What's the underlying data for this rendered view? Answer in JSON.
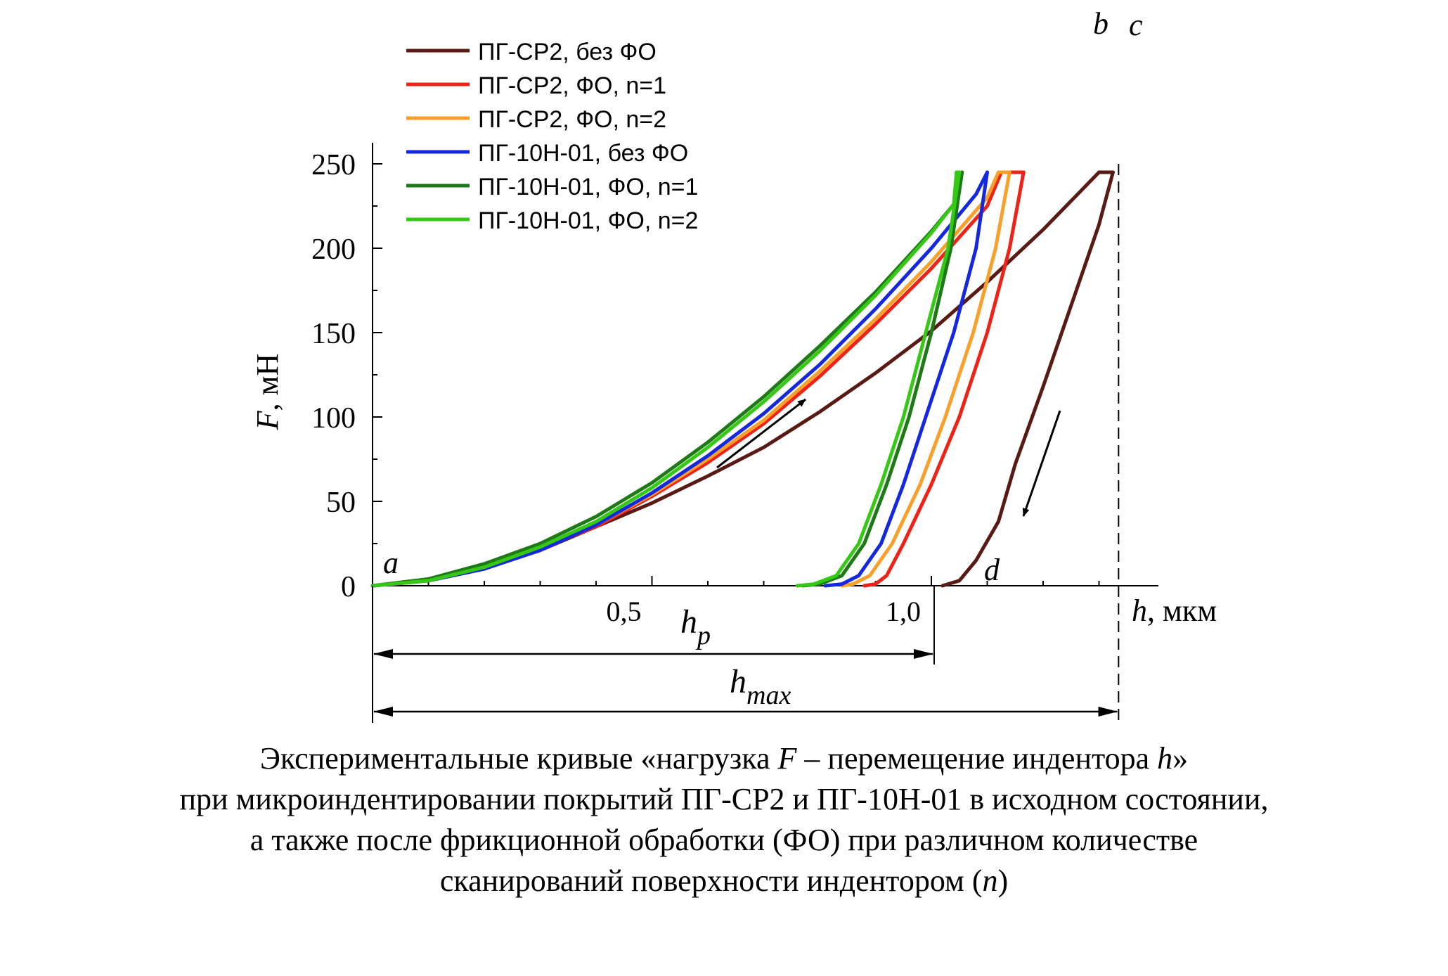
{
  "chart_data": {
    "type": "line",
    "ylabel_var": "F",
    "ylabel_unit": ", мН",
    "xlabel_var": "h",
    "xlabel_unit": ", мкм",
    "ylim": [
      0,
      250
    ],
    "xlim": [
      0,
      1.4
    ],
    "yticks": [
      0,
      50,
      100,
      150,
      200,
      250
    ],
    "ytick_labels": [
      "0",
      "50",
      "100",
      "150",
      "200",
      "250"
    ],
    "xticks": [
      0.5,
      1.0
    ],
    "xtick_labels": [
      "0,5",
      "1,0"
    ],
    "grid": false,
    "legend_position": "top-left",
    "point_labels": [
      "a",
      "b",
      "c",
      "d"
    ],
    "hp_label": "h",
    "hp_sub": "p",
    "hmax_label": "h",
    "hmax_sub": "max",
    "hp_value": 1.005,
    "hmax_value": 1.335,
    "series": [
      {
        "name": "ПГ-СР2, без ФО",
        "color": "#5a1a14",
        "loading": [
          [
            0,
            0
          ],
          [
            0.1,
            3
          ],
          [
            0.2,
            10
          ],
          [
            0.3,
            21
          ],
          [
            0.4,
            35
          ],
          [
            0.5,
            49
          ],
          [
            0.6,
            65
          ],
          [
            0.7,
            82
          ],
          [
            0.8,
            103
          ],
          [
            0.9,
            126
          ],
          [
            1.0,
            151
          ],
          [
            1.1,
            180
          ],
          [
            1.2,
            211
          ],
          [
            1.3,
            245
          ]
        ],
        "plateau": [
          [
            1.3,
            245
          ],
          [
            1.325,
            245
          ]
        ],
        "unloading": [
          [
            1.325,
            245
          ],
          [
            1.3,
            214
          ],
          [
            1.25,
            166
          ],
          [
            1.2,
            118
          ],
          [
            1.15,
            72
          ],
          [
            1.12,
            38
          ],
          [
            1.08,
            15
          ],
          [
            1.05,
            3
          ],
          [
            1.02,
            0
          ]
        ]
      },
      {
        "name": "ПГ-СР2, ФО, n=1",
        "color": "#ee2216",
        "loading": [
          [
            0,
            0
          ],
          [
            0.1,
            3
          ],
          [
            0.2,
            11
          ],
          [
            0.3,
            22
          ],
          [
            0.4,
            35
          ],
          [
            0.5,
            53
          ],
          [
            0.6,
            73
          ],
          [
            0.7,
            96
          ],
          [
            0.8,
            124
          ],
          [
            0.9,
            155
          ],
          [
            1.0,
            188
          ],
          [
            1.1,
            225
          ],
          [
            1.125,
            245
          ]
        ],
        "plateau": [
          [
            1.125,
            245
          ],
          [
            1.165,
            245
          ]
        ],
        "unloading": [
          [
            1.165,
            245
          ],
          [
            1.14,
            200
          ],
          [
            1.1,
            150
          ],
          [
            1.05,
            100
          ],
          [
            1.0,
            60
          ],
          [
            0.95,
            25
          ],
          [
            0.92,
            6
          ],
          [
            0.9,
            1
          ],
          [
            0.88,
            0
          ]
        ]
      },
      {
        "name": "ПГ-СР2, ФО, n=2",
        "color": "#f9a02a",
        "loading": [
          [
            0,
            0
          ],
          [
            0.1,
            3
          ],
          [
            0.2,
            11
          ],
          [
            0.3,
            22
          ],
          [
            0.4,
            36
          ],
          [
            0.5,
            54
          ],
          [
            0.6,
            75
          ],
          [
            0.7,
            98
          ],
          [
            0.8,
            127
          ],
          [
            0.9,
            158
          ],
          [
            1.0,
            192
          ],
          [
            1.1,
            230
          ],
          [
            1.12,
            245
          ]
        ],
        "plateau": [
          [
            1.12,
            245
          ],
          [
            1.14,
            245
          ]
        ],
        "unloading": [
          [
            1.14,
            245
          ],
          [
            1.115,
            200
          ],
          [
            1.075,
            150
          ],
          [
            1.025,
            100
          ],
          [
            0.98,
            60
          ],
          [
            0.93,
            25
          ],
          [
            0.89,
            6
          ],
          [
            0.86,
            1
          ],
          [
            0.84,
            0
          ]
        ]
      },
      {
        "name": "ПГ-10Н-01, без ФО",
        "color": "#1428e0",
        "loading": [
          [
            0,
            0
          ],
          [
            0.1,
            3
          ],
          [
            0.2,
            10
          ],
          [
            0.3,
            21
          ],
          [
            0.4,
            36
          ],
          [
            0.5,
            55
          ],
          [
            0.6,
            77
          ],
          [
            0.7,
            102
          ],
          [
            0.8,
            131
          ],
          [
            0.9,
            164
          ],
          [
            1.0,
            200
          ],
          [
            1.08,
            232
          ],
          [
            1.1,
            245
          ]
        ],
        "plateau": [
          [
            1.1,
            245
          ],
          [
            1.1,
            245
          ]
        ],
        "unloading": [
          [
            1.1,
            245
          ],
          [
            1.08,
            200
          ],
          [
            1.04,
            150
          ],
          [
            0.99,
            100
          ],
          [
            0.95,
            60
          ],
          [
            0.91,
            25
          ],
          [
            0.87,
            6
          ],
          [
            0.84,
            1
          ],
          [
            0.81,
            0
          ]
        ]
      },
      {
        "name": "ПГ-10Н-01, ФО, n=1",
        "color": "#1e7a16",
        "loading": [
          [
            0,
            0
          ],
          [
            0.1,
            4
          ],
          [
            0.2,
            13
          ],
          [
            0.3,
            25
          ],
          [
            0.4,
            41
          ],
          [
            0.5,
            61
          ],
          [
            0.6,
            85
          ],
          [
            0.7,
            112
          ],
          [
            0.8,
            142
          ],
          [
            0.9,
            174
          ],
          [
            1.0,
            210
          ],
          [
            1.04,
            226
          ],
          [
            1.055,
            245
          ]
        ],
        "plateau": [
          [
            1.055,
            245
          ],
          [
            1.055,
            245
          ]
        ],
        "unloading": [
          [
            1.055,
            245
          ],
          [
            1.035,
            200
          ],
          [
            1.0,
            150
          ],
          [
            0.96,
            100
          ],
          [
            0.92,
            60
          ],
          [
            0.88,
            25
          ],
          [
            0.84,
            6
          ],
          [
            0.8,
            1
          ],
          [
            0.77,
            0
          ]
        ]
      },
      {
        "name": "ПГ-10Н-01, ФО, n=2",
        "color": "#35c814",
        "loading": [
          [
            0,
            0
          ],
          [
            0.1,
            3
          ],
          [
            0.2,
            11
          ],
          [
            0.3,
            23
          ],
          [
            0.4,
            38
          ],
          [
            0.5,
            58
          ],
          [
            0.6,
            82
          ],
          [
            0.7,
            109
          ],
          [
            0.8,
            139
          ],
          [
            0.9,
            172
          ],
          [
            1.0,
            209
          ],
          [
            1.04,
            226
          ],
          [
            1.045,
            245
          ]
        ],
        "plateau": [
          [
            1.045,
            245
          ],
          [
            1.05,
            245
          ]
        ],
        "unloading": [
          [
            1.05,
            245
          ],
          [
            1.03,
            200
          ],
          [
            0.99,
            150
          ],
          [
            0.95,
            100
          ],
          [
            0.91,
            60
          ],
          [
            0.87,
            25
          ],
          [
            0.83,
            6
          ],
          [
            0.79,
            1
          ],
          [
            0.76,
            0
          ]
        ]
      }
    ]
  },
  "caption": {
    "line1_a": "Экспериментальные кривые «нагрузка ",
    "line1_F": "F",
    "line1_b": " – перемещение индентора ",
    "line1_h": "h",
    "line1_c": "»",
    "line2": "при микроиндентировании покрытий ПГ-СР2 и ПГ-10Н-01 в исходном состоянии,",
    "line3": "а также после фрикционной обработки (ФО) при различном количестве",
    "line4_a": "сканирований поверхности индентором (",
    "line4_n": "n",
    "line4_b": ")"
  }
}
